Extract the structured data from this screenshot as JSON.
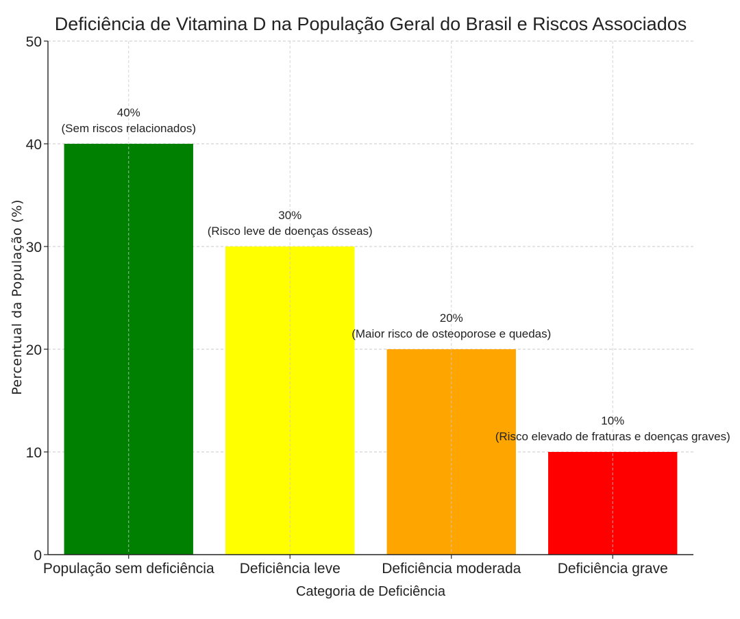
{
  "chart_data": {
    "type": "bar",
    "title": "Deficiência de Vitamina D na População Geral do Brasil e Riscos Associados",
    "xlabel": "Categoria de Deficiência",
    "ylabel": "Percentual da População (%)",
    "ylim": [
      0,
      50
    ],
    "yticks": [
      "0",
      "10",
      "20",
      "30",
      "40",
      "50"
    ],
    "grid": true,
    "categories": [
      "População sem deficiência",
      "Deficiência leve",
      "Deficiência moderada",
      "Deficiência grave"
    ],
    "values": [
      40,
      30,
      20,
      10
    ],
    "colors": [
      "#008000",
      "#ffff00",
      "#ffa500",
      "#ff0000"
    ],
    "annotations": [
      {
        "value_label": "40%",
        "risk_label": "(Sem riscos relacionados)"
      },
      {
        "value_label": "30%",
        "risk_label": "(Risco leve de doenças ósseas)"
      },
      {
        "value_label": "20%",
        "risk_label": "(Maior risco de osteoporose e quedas)"
      },
      {
        "value_label": "10%",
        "risk_label": "(Risco elevado de fraturas e doenças graves)"
      }
    ]
  }
}
